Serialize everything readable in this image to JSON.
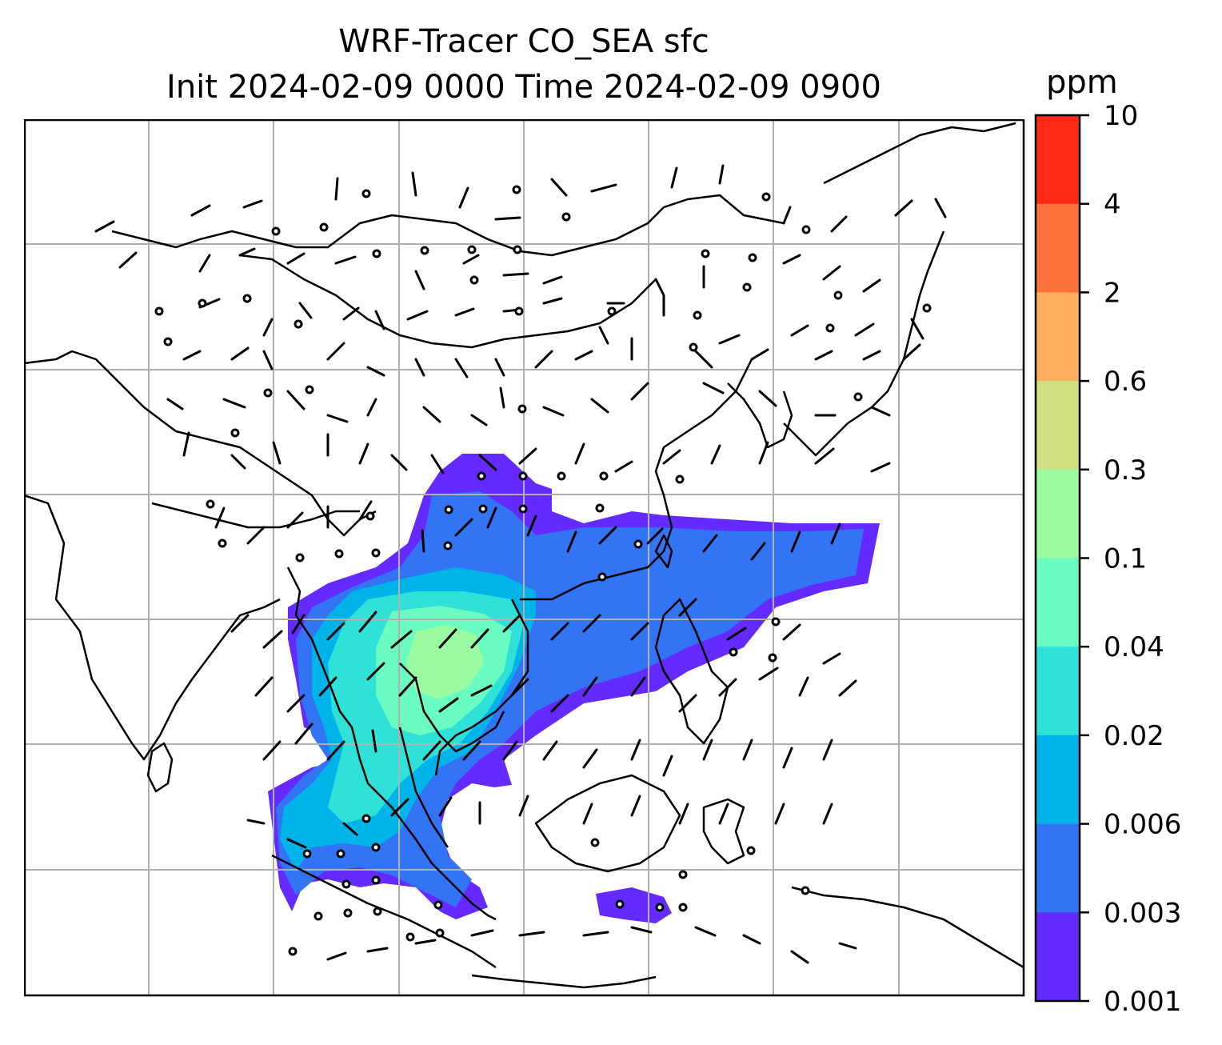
{
  "title": {
    "line1": "WRF-Tracer CO_SEA sfc",
    "line2": "Init 2024-02-09 0000 Time 2024-02-09 0900"
  },
  "colorbar": {
    "unit": "ppm",
    "levels": [
      "10",
      "4",
      "2",
      "0.6",
      "0.3",
      "0.1",
      "0.04",
      "0.02",
      "0.006",
      "0.003",
      "0.001"
    ],
    "colors": [
      "#ff2a16",
      "#ff713a",
      "#ffae5f",
      "#d0e184",
      "#9bfba0",
      "#6afcc1",
      "#30e1d8",
      "#00b4ea",
      "#3274f4",
      "#642aff"
    ]
  },
  "map": {
    "gridlines": true,
    "field": "CO_SEA tracer concentration (filled contours)",
    "vectors": "wind barbs"
  }
}
